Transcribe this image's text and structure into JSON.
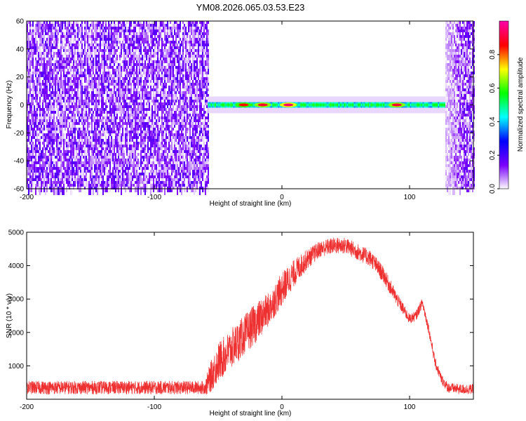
{
  "page": {
    "title": "YM08.2026.065.03.53.E23"
  },
  "chart_data": [
    {
      "type": "heatmap",
      "title": "YM08.2026.065.03.53.E23",
      "xlabel": "Height of straight line (km)",
      "ylabel": "Frequency (Hz)",
      "xlim": [
        -200,
        150
      ],
      "ylim": [
        -60,
        60
      ],
      "x_ticks": [
        -200,
        -100,
        0,
        100
      ],
      "x_tick_labels": [
        "-200",
        "-100",
        "0",
        "100"
      ],
      "y_ticks": [
        -60,
        -40,
        -20,
        0,
        20,
        40,
        60
      ],
      "y_tick_labels": [
        "-60",
        "-40",
        "-20",
        "0",
        "20",
        "40",
        "60"
      ],
      "colorbar": {
        "label": "Normalized spectral amplitude",
        "range": [
          0,
          1
        ],
        "ticks": [
          0.0,
          0.2,
          0.4,
          0.6,
          0.8
        ],
        "tick_labels": [
          "0.0",
          "0.2",
          "0.4",
          "0.6",
          "0.8"
        ],
        "colormap": [
          "#ffffff",
          "#7a00ff",
          "#0000ff",
          "#00ffff",
          "#00ff00",
          "#ffff00",
          "#ff0000",
          "#ff00aa"
        ]
      },
      "regions": [
        {
          "x_range": [
            -200,
            -58
          ],
          "description": "noise",
          "amplitude_range": [
            0.0,
            0.2
          ]
        },
        {
          "x_range": [
            -58,
            128
          ],
          "band_center_hz": 0,
          "band_halfwidth_hz": 2,
          "amplitude_range": [
            0.3,
            1.0
          ]
        },
        {
          "x_range": [
            128,
            150
          ],
          "description": "noise",
          "amplitude_range": [
            0.0,
            0.2
          ]
        }
      ],
      "hotspots": [
        {
          "x": -30,
          "amplitude": 0.85
        },
        {
          "x": -15,
          "amplitude": 0.9
        },
        {
          "x": 5,
          "amplitude": 0.95
        },
        {
          "x": 90,
          "amplitude": 0.9
        }
      ]
    },
    {
      "type": "line",
      "xlabel": "Height of straight line (km)",
      "ylabel": "SNR (10 * v/v)",
      "xlim": [
        -200,
        150
      ],
      "ylim": [
        0,
        5000
      ],
      "x_ticks": [
        -200,
        -100,
        0,
        100
      ],
      "x_tick_labels": [
        "-200",
        "-100",
        "0",
        "100"
      ],
      "y_ticks": [
        1000,
        2000,
        3000,
        4000,
        5000
      ],
      "y_tick_labels": [
        "1000",
        "2000",
        "3000",
        "4000",
        "5000"
      ],
      "line_color": "#ee3030",
      "series": [
        {
          "x": [
            -200,
            -180,
            -160,
            -140,
            -120,
            -100,
            -80,
            -60,
            -58,
            -50,
            -40,
            -30,
            -20,
            -10,
            0,
            10,
            20,
            30,
            40,
            50,
            60,
            70,
            80,
            90,
            100,
            105,
            110,
            115,
            120,
            125,
            130,
            140,
            150
          ],
          "values": [
            350,
            350,
            350,
            350,
            350,
            350,
            350,
            350,
            500,
            1100,
            1500,
            1900,
            2300,
            2700,
            3300,
            3800,
            4200,
            4500,
            4600,
            4600,
            4400,
            4200,
            3700,
            3000,
            2400,
            2500,
            2900,
            2100,
            1100,
            600,
            350,
            300,
            300
          ],
          "noise_amplitude": [
            200,
            200,
            200,
            200,
            200,
            200,
            200,
            200,
            400,
            600,
            600,
            600,
            600,
            500,
            500,
            400,
            300,
            250,
            250,
            250,
            250,
            250,
            250,
            200,
            150,
            150,
            150,
            150,
            150,
            150,
            150,
            150,
            150
          ]
        }
      ]
    }
  ]
}
